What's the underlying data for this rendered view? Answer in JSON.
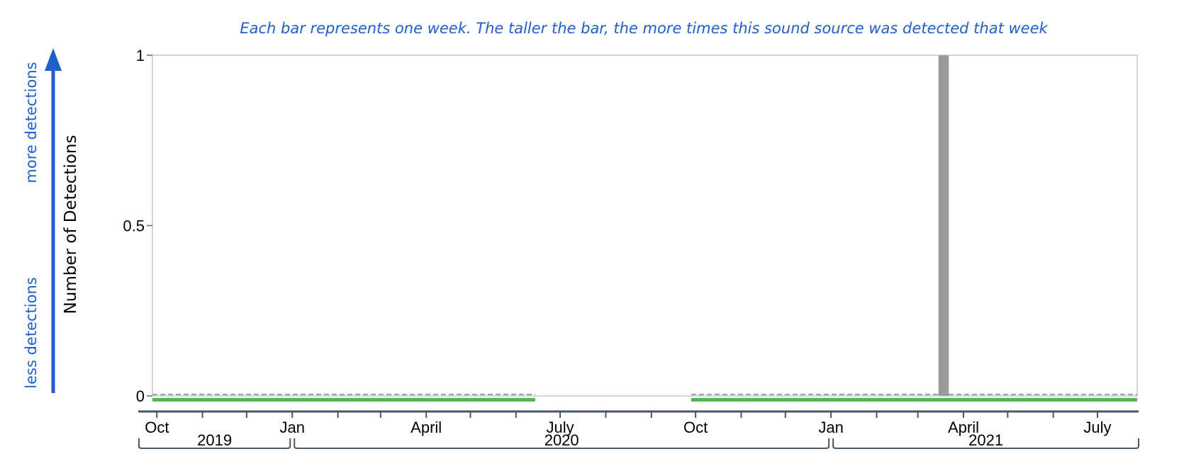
{
  "caption": "Each bar represents one week. The taller the bar, the more times this sound source was detected that week",
  "side_arrow": {
    "more_label": "more detections",
    "less_label": "less detections"
  },
  "colors": {
    "accent_blue": "#1f5fcc",
    "bar_gray": "#9a9a9a",
    "coverage_green": "#4cb84c",
    "dashed_gray": "#a0a0a0",
    "axis_navy": "#4a5568"
  },
  "chart_data": {
    "type": "bar",
    "ylabel": "Number of Detections",
    "ylim": [
      0,
      1
    ],
    "yticks": [
      {
        "value": 0,
        "label": "0"
      },
      {
        "value": 0.5,
        "label": "0.5"
      },
      {
        "value": 1,
        "label": "1"
      }
    ],
    "xlim": [
      "2019-09-28",
      "2021-07-28"
    ],
    "month_labels": [
      {
        "date": "2019-10-01",
        "label": "Oct"
      },
      {
        "date": "2020-01-01",
        "label": "Jan"
      },
      {
        "date": "2020-04-01",
        "label": "April"
      },
      {
        "date": "2020-07-01",
        "label": "July"
      },
      {
        "date": "2020-10-01",
        "label": "Oct"
      },
      {
        "date": "2021-01-01",
        "label": "Jan"
      },
      {
        "date": "2021-04-01",
        "label": "April"
      },
      {
        "date": "2021-07-01",
        "label": "July"
      }
    ],
    "month_ticks": [
      "2019-10-01",
      "2019-11-01",
      "2019-12-01",
      "2020-01-01",
      "2020-02-01",
      "2020-03-01",
      "2020-04-01",
      "2020-05-01",
      "2020-06-01",
      "2020-07-01",
      "2020-08-01",
      "2020-09-01",
      "2020-10-01",
      "2020-11-01",
      "2020-12-01",
      "2021-01-01",
      "2021-02-01",
      "2021-03-01",
      "2021-04-01",
      "2021-05-01",
      "2021-06-01",
      "2021-07-01"
    ],
    "year_labels": [
      {
        "start": "2019-09-28",
        "end": "2020-01-01",
        "label": "2019"
      },
      {
        "start": "2020-01-01",
        "end": "2021-01-01",
        "label": "2020"
      },
      {
        "start": "2021-01-01",
        "end": "2021-07-28",
        "label": "2021"
      }
    ],
    "recording_periods": [
      {
        "start": "2019-09-28",
        "end": "2020-06-14"
      },
      {
        "start": "2020-09-28",
        "end": "2021-07-28"
      }
    ],
    "weekly_detections": [
      {
        "week_start": "2021-03-15",
        "value": 1
      }
    ],
    "grid": false
  }
}
